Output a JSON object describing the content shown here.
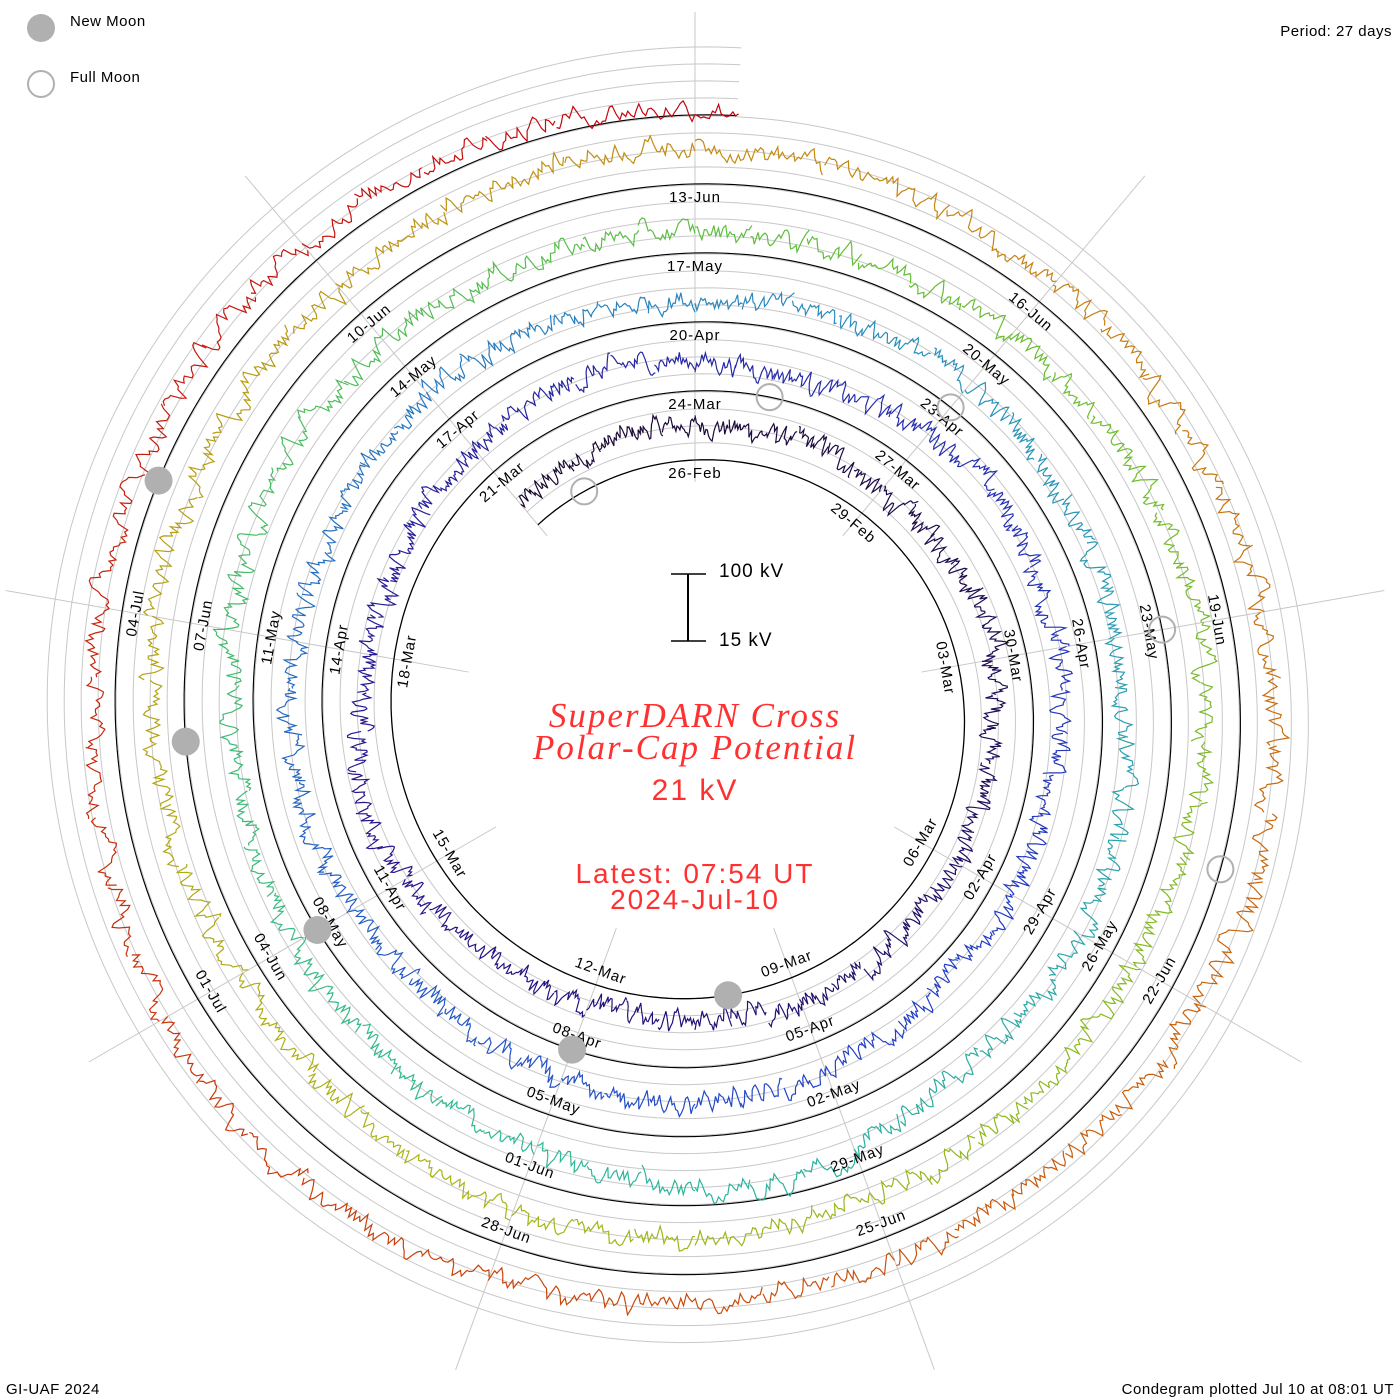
{
  "legend": {
    "new_moon": "New Moon",
    "full_moon": "Full Moon"
  },
  "period_label": "Period: 27 days",
  "credit": "GI-UAF 2024",
  "plotted": "Condegram plotted Jul 10 at 08:01 UT",
  "scale": {
    "top": "100 kV",
    "bottom": "15 kV"
  },
  "title_line1": "SuperDARN Cross",
  "title_line2": "Polar-Cap Potential",
  "current_value": "21 kV",
  "latest_line1": "Latest: 07:54 UT",
  "latest_line2": "2024-Jul-10",
  "colors": {
    "title": "#ff3030",
    "moon": "#b0b0b0",
    "grid": "#c8c8c8"
  },
  "chart_data": {
    "type": "line",
    "title": "SuperDARN Cross Polar-Cap Potential",
    "layout": "condegram spiral",
    "period_days": 27,
    "x_unit": "days since 26-Feb-2024",
    "y_unit": "kV",
    "scale_range_kV": [
      15,
      100
    ],
    "start_day": -3,
    "end_day": 135.33,
    "daily_values_kV": [
      45,
      52,
      60,
      58,
      55,
      62,
      48,
      57,
      66,
      60,
      52,
      47,
      44,
      42,
      50,
      55,
      46,
      41,
      38,
      43,
      47,
      62,
      70,
      58,
      45,
      50,
      48,
      52,
      55,
      60,
      52,
      47,
      45,
      62,
      65,
      58,
      54,
      47,
      42,
      44,
      40,
      46,
      52,
      60,
      58,
      55,
      48,
      43,
      46,
      52,
      58,
      50,
      46,
      52,
      55,
      48,
      44,
      43,
      45,
      50,
      53,
      50,
      45,
      40,
      46,
      52,
      56,
      54,
      48,
      75,
      90,
      72,
      60,
      55,
      52,
      48,
      46,
      44,
      50,
      55,
      58,
      52,
      48,
      45,
      42,
      40,
      44,
      48,
      52,
      58,
      62,
      55,
      50,
      46,
      45,
      48,
      50,
      52,
      55,
      60,
      48,
      44,
      42,
      50,
      54,
      58,
      62,
      58,
      54,
      60,
      66,
      62,
      55,
      50,
      46,
      44,
      48,
      52,
      58,
      63,
      55,
      50,
      46,
      42,
      48,
      53,
      60,
      65,
      70,
      62,
      55,
      50,
      46,
      44,
      42,
      40,
      38,
      30,
      22
    ],
    "date_labels": [
      "26-Feb",
      "29-Feb",
      "03-Mar",
      "06-Mar",
      "09-Mar",
      "12-Mar",
      "15-Mar",
      "18-Mar",
      "21-Mar",
      "24-Mar",
      "27-Mar",
      "30-Mar",
      "02-Apr",
      "05-Apr",
      "08-Apr",
      "11-Apr",
      "14-Apr",
      "17-Apr",
      "20-Apr",
      "23-Apr",
      "26-Apr",
      "29-Apr",
      "02-May",
      "05-May",
      "08-May",
      "11-May",
      "14-May",
      "17-May",
      "20-May",
      "23-May",
      "26-May",
      "29-May",
      "01-Jun",
      "04-Jun",
      "07-Jun",
      "10-Jun",
      "13-Jun",
      "16-Jun",
      "19-Jun",
      "22-Jun",
      "25-Jun",
      "28-Jun",
      "01-Jul",
      "04-Jul"
    ],
    "new_moons_day": [
      13,
      42,
      72,
      101,
      130
    ],
    "full_moons_day": [
      -2,
      28,
      57,
      87,
      116
    ]
  }
}
